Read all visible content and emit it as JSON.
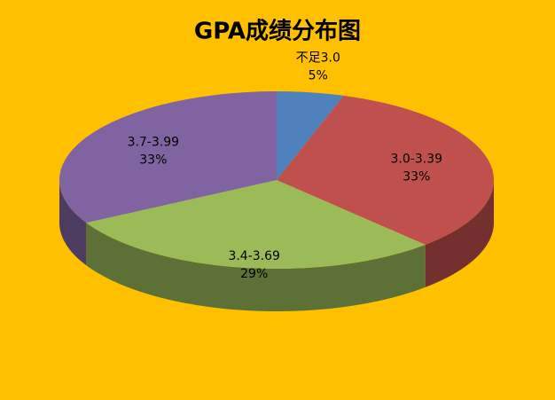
{
  "chart_data": {
    "type": "pie",
    "title": "GPA成绩分布图",
    "categories": [
      "不足3.0",
      "3.0-3.39",
      "3.4-3.69",
      "3.7-3.99"
    ],
    "values": [
      5,
      33,
      29,
      33
    ],
    "value_labels": [
      "5%",
      "33%",
      "29%",
      "33%"
    ],
    "colors": [
      "#4F81BD",
      "#C0504D",
      "#9BBB59",
      "#8064A2"
    ]
  }
}
